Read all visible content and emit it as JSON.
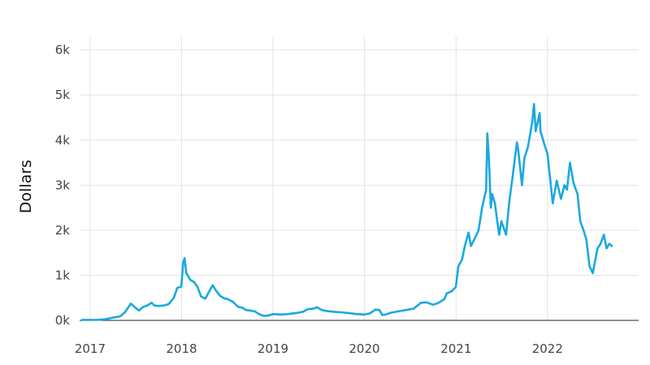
{
  "chart_data": {
    "type": "line",
    "title": "",
    "xlabel": "",
    "ylabel": "Dollars",
    "x_tick_labels": [
      "2017",
      "2018",
      "2019",
      "2020",
      "2021",
      "2022"
    ],
    "y_tick_labels": [
      "0k",
      "1k",
      "2k",
      "3k",
      "4k",
      "5k",
      "6k"
    ],
    "y_ticks": [
      0,
      1000,
      2000,
      3000,
      4000,
      5000,
      6000
    ],
    "ylim": [
      0,
      6300
    ],
    "xlim": [
      "2016-11-20",
      "2022-12-31"
    ],
    "grid": true,
    "legend": "none",
    "series": [
      {
        "color": "#1aa9df",
        "x": [
          "2016-12-01",
          "2017-01-01",
          "2017-02-01",
          "2017-03-01",
          "2017-04-01",
          "2017-05-01",
          "2017-05-20",
          "2017-06-12",
          "2017-07-01",
          "2017-07-15",
          "2017-08-01",
          "2017-08-20",
          "2017-09-03",
          "2017-09-15",
          "2017-10-01",
          "2017-10-20",
          "2017-11-10",
          "2017-12-01",
          "2017-12-15",
          "2017-12-31",
          "2018-01-08",
          "2018-01-13",
          "2018-01-20",
          "2018-02-05",
          "2018-02-20",
          "2018-03-05",
          "2018-03-20",
          "2018-04-06",
          "2018-04-20",
          "2018-05-05",
          "2018-05-20",
          "2018-06-05",
          "2018-06-20",
          "2018-07-05",
          "2018-07-25",
          "2018-08-15",
          "2018-09-01",
          "2018-09-15",
          "2018-10-01",
          "2018-10-20",
          "2018-11-10",
          "2018-11-25",
          "2018-12-15",
          "2019-01-01",
          "2019-02-01",
          "2019-03-01",
          "2019-04-01",
          "2019-05-01",
          "2019-05-20",
          "2019-06-10",
          "2019-06-26",
          "2019-07-15",
          "2019-08-01",
          "2019-09-01",
          "2019-10-01",
          "2019-11-01",
          "2019-12-01",
          "2020-01-01",
          "2020-01-25",
          "2020-02-14",
          "2020-03-01",
          "2020-03-12",
          "2020-03-25",
          "2020-04-15",
          "2020-05-15",
          "2020-06-15",
          "2020-07-15",
          "2020-08-14",
          "2020-09-05",
          "2020-10-01",
          "2020-10-20",
          "2020-11-15",
          "2020-11-25",
          "2020-12-15",
          "2020-12-31",
          "2021-01-10",
          "2021-01-25",
          "2021-02-05",
          "2021-02-20",
          "2021-03-01",
          "2021-03-15",
          "2021-04-01",
          "2021-04-15",
          "2021-05-01",
          "2021-05-06",
          "2021-05-12",
          "2021-05-20",
          "2021-05-25",
          "2021-06-05",
          "2021-06-22",
          "2021-07-01",
          "2021-07-20",
          "2021-08-01",
          "2021-08-15",
          "2021-09-01",
          "2021-09-06",
          "2021-09-21",
          "2021-10-01",
          "2021-10-15",
          "2021-11-01",
          "2021-11-08",
          "2021-11-15",
          "2021-12-01",
          "2021-12-04",
          "2021-12-20",
          "2022-01-01",
          "2022-01-22",
          "2022-02-07",
          "2022-02-24",
          "2022-03-10",
          "2022-03-20",
          "2022-04-01",
          "2022-04-15",
          "2022-05-01",
          "2022-05-12",
          "2022-05-25",
          "2022-06-05",
          "2022-06-18",
          "2022-07-01",
          "2022-07-20",
          "2022-08-01",
          "2022-08-14",
          "2022-08-25",
          "2022-09-05",
          "2022-09-15"
        ],
        "y": [
          10,
          10,
          12,
          25,
          60,
          90,
          180,
          370,
          280,
          220,
          300,
          340,
          390,
          330,
          320,
          330,
          360,
          500,
          720,
          750,
          1300,
          1380,
          1050,
          900,
          850,
          750,
          530,
          480,
          630,
          780,
          650,
          540,
          490,
          470,
          410,
          300,
          280,
          230,
          220,
          200,
          130,
          100,
          110,
          140,
          130,
          140,
          160,
          190,
          250,
          260,
          290,
          230,
          210,
          190,
          180,
          160,
          140,
          130,
          160,
          240,
          230,
          120,
          130,
          170,
          200,
          230,
          260,
          390,
          400,
          350,
          380,
          470,
          600,
          650,
          740,
          1200,
          1350,
          1650,
          1950,
          1650,
          1800,
          2000,
          2500,
          2900,
          4150,
          3600,
          2500,
          2800,
          2600,
          1900,
          2200,
          1900,
          2600,
          3200,
          3950,
          3800,
          3000,
          3600,
          3850,
          4400,
          4800,
          4200,
          4600,
          4200,
          3900,
          3700,
          2600,
          3100,
          2700,
          3000,
          2900,
          3500,
          3050,
          2800,
          2200,
          2000,
          1800,
          1200,
          1050,
          1600,
          1700,
          1900,
          1600,
          1700,
          1650
        ]
      }
    ]
  }
}
